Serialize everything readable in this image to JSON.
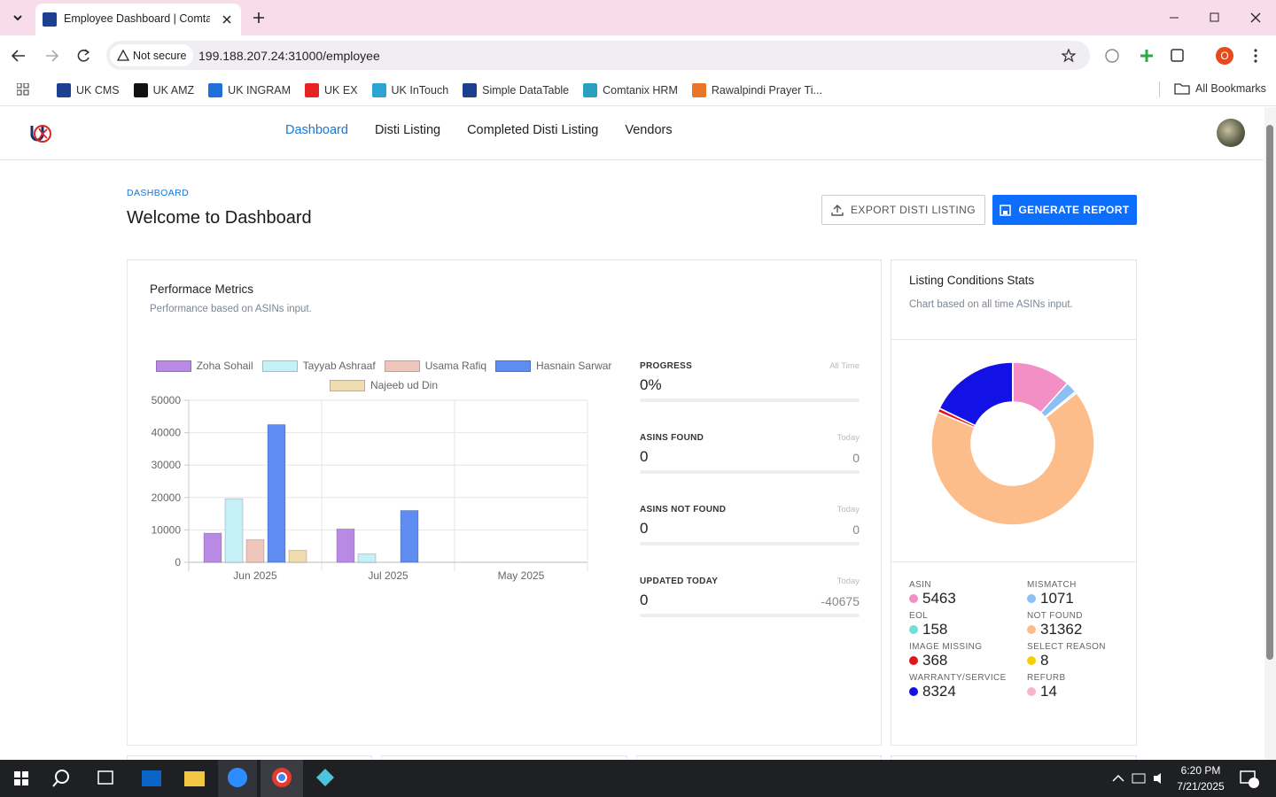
{
  "browser": {
    "tab_title": "Employee Dashboard | Comtan",
    "security": "Not secure",
    "url": "199.188.207.24:31000/employee",
    "bookmarks": [
      "UK CMS",
      "UK AMZ",
      "UK INGRAM",
      "UK EX",
      "UK InTouch",
      "Simple DataTable",
      "Comtanix HRM",
      "Rawalpindi Prayer Ti..."
    ],
    "all_bookmarks": "All Bookmarks",
    "profile": "O"
  },
  "nav": {
    "links": [
      "Dashboard",
      "Disti Listing",
      "Completed Disti Listing",
      "Vendors"
    ]
  },
  "header": {
    "breadcrumb": "DASHBOARD",
    "title": "Welcome to Dashboard",
    "actions": [
      "EXPORT DISTI LISTING",
      "GENERATE REPORT"
    ]
  },
  "performance": {
    "title": "Performace Metrics",
    "subtitle": "Performance based on ASINs input.",
    "metrics": [
      {
        "label": "PROGRESS",
        "period": "All Time",
        "value": "0%"
      },
      {
        "label": "ASINS FOUND",
        "period": "Today",
        "value": 0,
        "change": 0
      },
      {
        "label": "ASINS NOT FOUND",
        "period": "Today",
        "value": 0,
        "change": 0
      },
      {
        "label": "UPDATED TODAY",
        "period": "Today",
        "value": 0,
        "change": -40675
      }
    ]
  },
  "listing_stats": {
    "title": "Listing Conditions Stats",
    "subtitle": "Chart based on all time ASINs input."
  },
  "chart_data": [
    {
      "type": "bar",
      "categories": [
        "Jun 2025",
        "Jul 2025",
        "May 2025"
      ],
      "series": [
        {
          "name": "Zoha Sohail",
          "color": "#b98ae3",
          "values": [
            9000,
            10300,
            0
          ]
        },
        {
          "name": "Tayyab Ashraaf",
          "color": "#c4f0f6",
          "values": [
            19600,
            2600,
            0
          ]
        },
        {
          "name": "Usama Rafiq",
          "color": "#efc6bc",
          "values": [
            7000,
            0,
            0
          ]
        },
        {
          "name": "Hasnain Sarwar",
          "color": "#5f8cf0",
          "values": [
            42500,
            16000,
            0
          ]
        },
        {
          "name": "Najeeb ud Din",
          "color": "#efdcb0",
          "values": [
            3700,
            0,
            0
          ]
        }
      ],
      "ylim": [
        0,
        50000
      ],
      "yticks": [
        0,
        10000,
        20000,
        30000,
        40000,
        50000
      ],
      "grid": true
    },
    {
      "type": "pie",
      "categories": [
        "ASIN",
        "MISMATCH",
        "EOL",
        "NOT FOUND",
        "IMAGE MISSING",
        "SELECT REASON",
        "WARRANTY/SERVICE",
        "REFURB"
      ],
      "values": [
        5463,
        1071,
        158,
        31362,
        368,
        8,
        8324,
        14
      ],
      "colors": [
        "#f28fc4",
        "#8cc0f5",
        "#6fe0d6",
        "#fcbd8b",
        "#e0161b",
        "#f5d000",
        "#1212e6",
        "#f6b6c6"
      ]
    }
  ],
  "taskbar": {
    "time": "6:20 PM",
    "date": "7/21/2025"
  }
}
